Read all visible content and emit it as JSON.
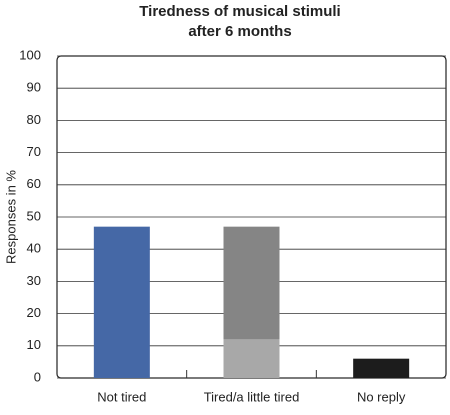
{
  "chart_data": {
    "type": "stacked_bar",
    "title": [
      "Tiredness of musical stimuli",
      "after 6 months"
    ],
    "y_label": "Responses in %",
    "categories": [
      "Not tired",
      "Tired/a little tired",
      "No reply"
    ],
    "series": [
      {
        "colors": [
          "#4568a6",
          "#a8a8a8",
          "#1c1c1c"
        ],
        "values": [
          47,
          12,
          6
        ]
      },
      {
        "color": "#858585",
        "values": [
          null,
          35,
          null
        ]
      }
    ],
    "ylim": [
      0,
      100
    ],
    "yticks": [
      0,
      10,
      20,
      30,
      40,
      50,
      60,
      70,
      80,
      90,
      100
    ],
    "grid": true
  }
}
